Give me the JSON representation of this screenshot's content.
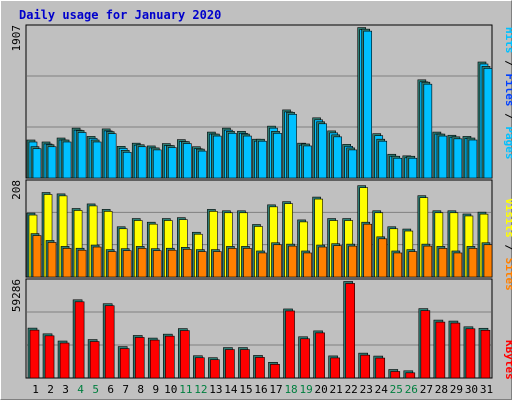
{
  "title": "Daily usage for January 2020",
  "colors": {
    "background": "#c0c0c0",
    "plot": "#c0c0c0",
    "gridline": "#808080",
    "hits": "#00c0ff",
    "files": "#0040ff",
    "pages": "#00c0ff",
    "visits": "#ffff00",
    "sites": "#ff8000",
    "kbytes": "#ff0000",
    "bar_shadow": "#2e7d74",
    "weekend_label": "#007f3f",
    "weekday_label": "#000000"
  },
  "chart_data": [
    {
      "type": "bar",
      "panel": "top",
      "ymax_label": "1907",
      "ylim": [
        0,
        1907
      ],
      "legend": [
        "Pages",
        "Files",
        "Hits"
      ],
      "legend_colors": [
        "#00c0ff",
        "#0040ff",
        "#00c0ff"
      ],
      "categories": [
        "1",
        "2",
        "3",
        "4",
        "5",
        "6",
        "7",
        "8",
        "9",
        "10",
        "11",
        "12",
        "13",
        "14",
        "15",
        "16",
        "17",
        "18",
        "19",
        "20",
        "21",
        "22",
        "23",
        "24",
        "25",
        "26",
        "27",
        "28",
        "29",
        "30",
        "31"
      ],
      "weekend": [
        "4",
        "5",
        "11",
        "12",
        "18",
        "19",
        "25",
        "26"
      ],
      "series": [
        {
          "name": "Hits",
          "values": [
            480,
            455,
            505,
            630,
            525,
            620,
            400,
            440,
            405,
            435,
            485,
            395,
            580,
            630,
            590,
            490,
            655,
            860,
            440,
            760,
            595,
            425,
            1900,
            560,
            300,
            280,
            1240,
            580,
            540,
            525,
            1465
          ]
        },
        {
          "name": "Files",
          "values": [
            395,
            420,
            480,
            600,
            480,
            585,
            350,
            420,
            380,
            410,
            460,
            365,
            555,
            590,
            555,
            490,
            590,
            830,
            430,
            710,
            545,
            380,
            1880,
            490,
            275,
            275,
            1210,
            555,
            520,
            505,
            1410
          ]
        }
      ]
    },
    {
      "type": "bar",
      "panel": "middle",
      "ymax_label": "208",
      "ylim": [
        0,
        208
      ],
      "legend": [
        "Sites",
        "Visits"
      ],
      "legend_colors": [
        "#ff8000",
        "#ffff00"
      ],
      "categories": [
        "1",
        "2",
        "3",
        "4",
        "5",
        "6",
        "7",
        "8",
        "9",
        "10",
        "11",
        "12",
        "13",
        "14",
        "15",
        "16",
        "17",
        "18",
        "19",
        "20",
        "21",
        "22",
        "23",
        "24",
        "25",
        "26",
        "27",
        "28",
        "29",
        "30",
        "31"
      ],
      "weekend": [
        "4",
        "5",
        "11",
        "12",
        "18",
        "19",
        "25",
        "26"
      ],
      "series": [
        {
          "name": "Visits",
          "values": [
            140,
            185,
            182,
            150,
            160,
            148,
            110,
            128,
            120,
            128,
            130,
            98,
            148,
            145,
            145,
            115,
            158,
            165,
            125,
            175,
            128,
            128,
            200,
            145,
            110,
            105,
            178,
            145,
            145,
            138,
            142
          ]
        },
        {
          "name": "Sites",
          "values": [
            95,
            80,
            67,
            63,
            70,
            60,
            62,
            67,
            62,
            63,
            65,
            60,
            60,
            67,
            67,
            57,
            75,
            72,
            57,
            70,
            73,
            72,
            120,
            88,
            57,
            60,
            72,
            67,
            57,
            67,
            75
          ]
        }
      ]
    },
    {
      "type": "bar",
      "panel": "bottom",
      "ymax_label": "59286",
      "ylim": [
        0,
        59286
      ],
      "legend": [
        "KBytes"
      ],
      "legend_colors": [
        "#ff0000"
      ],
      "categories": [
        "1",
        "2",
        "3",
        "4",
        "5",
        "6",
        "7",
        "8",
        "9",
        "10",
        "11",
        "12",
        "13",
        "14",
        "15",
        "16",
        "17",
        "18",
        "19",
        "20",
        "21",
        "22",
        "23",
        "24",
        "25",
        "26",
        "27",
        "28",
        "29",
        "30",
        "31"
      ],
      "weekend": [
        "4",
        "5",
        "11",
        "12",
        "18",
        "19",
        "25",
        "26"
      ],
      "series": [
        {
          "name": "KBytes",
          "values": [
            30500,
            27000,
            22600,
            47800,
            23500,
            45400,
            19200,
            26000,
            24400,
            26800,
            30200,
            13600,
            12400,
            18600,
            18600,
            13800,
            9600,
            42200,
            25200,
            28800,
            13500,
            59000,
            15200,
            13400,
            5200,
            4400,
            42400,
            35400,
            34800,
            31300,
            30400
          ]
        }
      ]
    }
  ]
}
